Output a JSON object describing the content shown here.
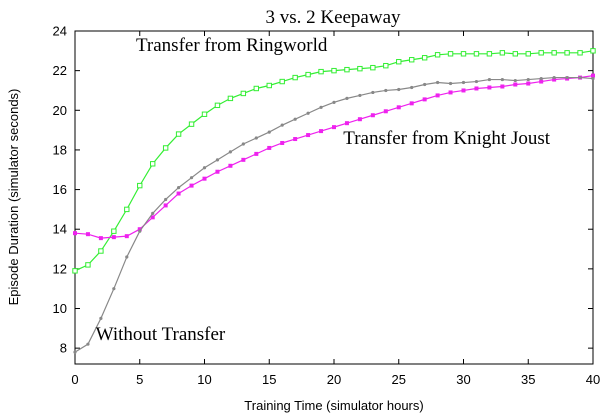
{
  "chart_data": {
    "type": "line",
    "title": "3 vs. 2 Keepaway",
    "xlabel": "Training Time (simulator hours)",
    "ylabel": "Episode Duration (simulator seconds)",
    "xlim": [
      0,
      40
    ],
    "ylim": [
      7.2,
      24
    ],
    "xticks": [
      0,
      5,
      10,
      15,
      20,
      25,
      30,
      35,
      40
    ],
    "yticks": [
      8,
      10,
      12,
      14,
      16,
      18,
      20,
      22,
      24
    ],
    "grid": false,
    "legend": "none",
    "x": [
      0,
      1,
      2,
      3,
      4,
      5,
      6,
      7,
      8,
      9,
      10,
      11,
      12,
      13,
      14,
      15,
      16,
      17,
      18,
      19,
      20,
      21,
      22,
      23,
      24,
      25,
      26,
      27,
      28,
      29,
      30,
      31,
      32,
      33,
      34,
      35,
      36,
      37,
      38,
      39,
      40
    ],
    "series": [
      {
        "name": "Transfer from Ringworld",
        "color": "#33ee33",
        "marker": "square-open",
        "values": [
          11.9,
          12.2,
          12.9,
          13.9,
          15.0,
          16.2,
          17.3,
          18.1,
          18.8,
          19.3,
          19.8,
          20.25,
          20.6,
          20.85,
          21.1,
          21.25,
          21.45,
          21.65,
          21.8,
          21.95,
          22.0,
          22.05,
          22.1,
          22.15,
          22.25,
          22.45,
          22.55,
          22.65,
          22.8,
          22.85,
          22.85,
          22.85,
          22.85,
          22.9,
          22.85,
          22.85,
          22.9,
          22.9,
          22.9,
          22.9,
          23.0
        ]
      },
      {
        "name": "Transfer from Knight Joust",
        "color": "#ee22ee",
        "marker": "square-filled",
        "values": [
          13.8,
          13.75,
          13.55,
          13.6,
          13.65,
          14.0,
          14.6,
          15.2,
          15.8,
          16.2,
          16.55,
          16.9,
          17.2,
          17.5,
          17.8,
          18.1,
          18.35,
          18.55,
          18.75,
          18.95,
          19.15,
          19.35,
          19.55,
          19.75,
          19.95,
          20.15,
          20.35,
          20.55,
          20.75,
          20.9,
          21.0,
          21.1,
          21.15,
          21.2,
          21.3,
          21.35,
          21.45,
          21.55,
          21.6,
          21.65,
          21.75
        ]
      },
      {
        "name": "Without Transfer",
        "color": "#888888",
        "marker": "circle-small",
        "values": [
          7.8,
          8.2,
          9.5,
          11.0,
          12.6,
          13.9,
          14.8,
          15.5,
          16.1,
          16.6,
          17.1,
          17.5,
          17.9,
          18.3,
          18.6,
          18.9,
          19.25,
          19.55,
          19.85,
          20.15,
          20.4,
          20.6,
          20.75,
          20.9,
          21.0,
          21.05,
          21.15,
          21.3,
          21.4,
          21.35,
          21.4,
          21.45,
          21.55,
          21.55,
          21.5,
          21.55,
          21.6,
          21.65,
          21.65,
          21.65,
          21.6
        ]
      }
    ],
    "annotations": [
      {
        "text": "Transfer from Ringworld",
        "x": 12.1,
        "y": 23.0
      },
      {
        "text": "Transfer from Knight Joust",
        "x": 28.7,
        "y": 18.3
      },
      {
        "text": "Without Transfer",
        "x": 6.6,
        "y": 8.4
      }
    ]
  }
}
